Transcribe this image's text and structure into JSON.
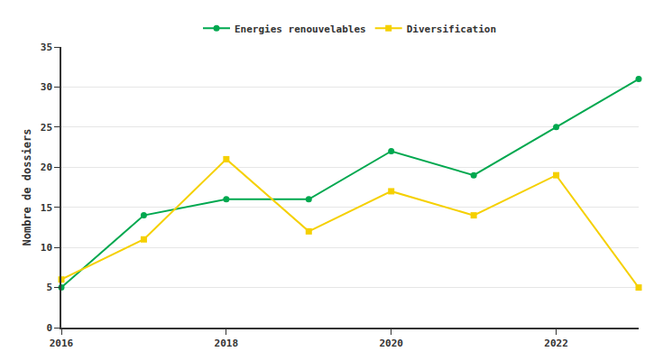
{
  "chart_data": {
    "type": "line",
    "y_label": "Nombre de dossiers",
    "x": [
      2016,
      2017,
      2018,
      2019,
      2020,
      2021,
      2022,
      2023
    ],
    "series": [
      {
        "name": "Energies renouvelables",
        "color": "#00a84f",
        "marker": "circle",
        "values": [
          5,
          14,
          16,
          16,
          22,
          19,
          25,
          31
        ]
      },
      {
        "name": "Diversification",
        "color": "#f5d000",
        "marker": "square",
        "values": [
          6,
          11,
          21,
          12,
          17,
          14,
          19,
          5
        ]
      }
    ],
    "xlim": [
      2016,
      2023
    ],
    "xticks": [
      2016,
      2018,
      2020,
      2022
    ],
    "ylim": [
      0,
      35
    ],
    "yticks": [
      0,
      5,
      10,
      15,
      20,
      25,
      30,
      35
    ],
    "grid": true,
    "legend": "top"
  }
}
